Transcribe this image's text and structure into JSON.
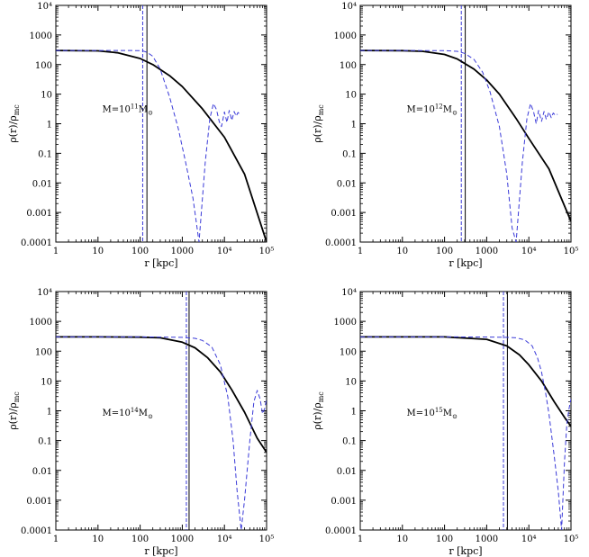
{
  "chart_data": [
    {
      "type": "line",
      "panel": "top-left",
      "xscale": "log",
      "yscale": "log",
      "xlim": [
        1,
        100000
      ],
      "ylim": [
        0.0001,
        10000
      ],
      "xlabel": "r [kpc]",
      "ylabel": "ρ(r)/ρ_mc",
      "annotation": "M=10^11 M⊙",
      "vlines": [
        {
          "x": 115,
          "style": "dashed"
        },
        {
          "x": 145,
          "style": "solid"
        }
      ],
      "series": [
        {
          "name": "solid",
          "color": "#000000",
          "style": "solid",
          "x": [
            1,
            10,
            30,
            100,
            200,
            500,
            1000,
            3000,
            10000,
            30000,
            100000
          ],
          "y": [
            300,
            290,
            250,
            160,
            100,
            42,
            18,
            3.2,
            0.35,
            0.02,
            0.0001
          ]
        },
        {
          "name": "dashed",
          "color": "#3a3ad8",
          "style": "dashed",
          "x": [
            1,
            10,
            50,
            100,
            120,
            150,
            200,
            300,
            500,
            800,
            1200,
            1800,
            2500,
            3500,
            4500,
            5500,
            6500,
            7500,
            8500,
            10000,
            11500,
            13000,
            15000,
            17000,
            19000,
            21000,
            23000
          ],
          "y": [
            300,
            300,
            300,
            295,
            285,
            255,
            190,
            70,
            8,
            0.7,
            0.05,
            0.003,
            0.0001,
            0.05,
            1.5,
            4.8,
            3,
            1.2,
            0.8,
            2.5,
            1.1,
            2.8,
            1.3,
            2.6,
            1.8,
            2.4,
            2.1
          ]
        }
      ]
    },
    {
      "type": "line",
      "panel": "top-right",
      "xscale": "log",
      "yscale": "log",
      "xlim": [
        1,
        100000
      ],
      "ylim": [
        0.0001,
        10000
      ],
      "xlabel": "r [kpc]",
      "ylabel": "ρ(r)/ρ_mc",
      "annotation": "M=10^12 M⊙",
      "vlines": [
        {
          "x": 250,
          "style": "dashed"
        },
        {
          "x": 310,
          "style": "solid"
        }
      ],
      "series": [
        {
          "name": "solid",
          "color": "#000000",
          "style": "solid",
          "x": [
            1,
            10,
            30,
            100,
            200,
            500,
            1000,
            2000,
            5000,
            10000,
            30000,
            100000
          ],
          "y": [
            300,
            295,
            280,
            220,
            155,
            70,
            30,
            10,
            1.5,
            0.32,
            0.03,
            0.0005
          ]
        },
        {
          "name": "dashed",
          "color": "#3a3ad8",
          "style": "dashed",
          "x": [
            1,
            10,
            100,
            200,
            300,
            500,
            800,
            1200,
            2000,
            3000,
            4000,
            5000,
            7000,
            9000,
            11000,
            13000,
            15000,
            17000,
            20000,
            23000,
            26000,
            30000,
            34000,
            38000,
            43000,
            48000
          ],
          "y": [
            300,
            300,
            295,
            280,
            240,
            150,
            55,
            12,
            0.8,
            0.02,
            0.0003,
            0.0001,
            0.05,
            1.5,
            4.8,
            2.5,
            1,
            2.8,
            1.2,
            2.6,
            1.4,
            2.5,
            1.6,
            2.3,
            1.9,
            2.1
          ]
        }
      ]
    },
    {
      "type": "line",
      "panel": "bottom-left",
      "xscale": "log",
      "yscale": "log",
      "xlim": [
        1,
        100000
      ],
      "ylim": [
        0.0001,
        10000
      ],
      "xlabel": "r [kpc]",
      "ylabel": "ρ(r)/ρ_mc",
      "annotation": "M=10^14 M⊙",
      "vlines": [
        {
          "x": 1250,
          "style": "dashed"
        },
        {
          "x": 1450,
          "style": "solid"
        }
      ],
      "series": [
        {
          "name": "solid",
          "color": "#000000",
          "style": "solid",
          "x": [
            1,
            10,
            100,
            300,
            1000,
            2000,
            4000,
            8000,
            15000,
            30000,
            60000,
            100000
          ],
          "y": [
            300,
            300,
            295,
            280,
            200,
            130,
            60,
            20,
            5,
            0.9,
            0.12,
            0.04
          ]
        },
        {
          "name": "dashed",
          "color": "#3a3ad8",
          "style": "dashed",
          "x": [
            1,
            10,
            100,
            500,
            1000,
            2000,
            3000,
            5000,
            8000,
            12000,
            16000,
            20000,
            25000,
            30000,
            40000,
            50000,
            60000,
            70000,
            80000,
            90000,
            100000
          ],
          "y": [
            300,
            300,
            300,
            295,
            290,
            270,
            230,
            140,
            35,
            3,
            0.1,
            0.002,
            0.0001,
            0.001,
            0.1,
            2,
            4.8,
            2.5,
            0.8,
            1.2,
            2.5
          ]
        }
      ]
    },
    {
      "type": "line",
      "panel": "bottom-right",
      "xscale": "log",
      "yscale": "log",
      "xlim": [
        1,
        100000
      ],
      "ylim": [
        0.0001,
        10000
      ],
      "xlabel": "r [kpc]",
      "ylabel": "ρ(r)/ρ_mc",
      "annotation": "M=10^15 M⊙",
      "vlines": [
        {
          "x": 2500,
          "style": "dashed"
        },
        {
          "x": 3100,
          "style": "solid"
        }
      ],
      "series": [
        {
          "name": "solid",
          "color": "#000000",
          "style": "solid",
          "x": [
            1,
            10,
            100,
            1000,
            3000,
            6000,
            10000,
            20000,
            40000,
            70000,
            100000
          ],
          "y": [
            300,
            300,
            300,
            250,
            150,
            75,
            35,
            10,
            2,
            0.6,
            0.3
          ]
        },
        {
          "name": "dashed",
          "color": "#3a3ad8",
          "style": "dashed",
          "x": [
            1,
            10,
            100,
            1000,
            3000,
            5000,
            8000,
            12000,
            16000,
            20000,
            25000,
            30000,
            40000,
            50000,
            60000,
            70000,
            80000,
            90000,
            100000
          ],
          "y": [
            300,
            300,
            300,
            298,
            290,
            280,
            240,
            150,
            60,
            20,
            4,
            0.8,
            0.03,
            0.002,
            0.0001,
            0.02,
            0.4,
            1.2,
            2.5
          ]
        }
      ]
    }
  ],
  "tick_labels": {
    "x": [
      "1",
      "10",
      "100",
      "1000",
      "10⁴",
      "10⁵"
    ],
    "y": [
      "0.0001",
      "0.001",
      "0.01",
      "0.1",
      "1",
      "10",
      "100",
      "1000",
      "10⁴"
    ]
  },
  "panel_text": [
    {
      "xlabel": "r [kpc]",
      "ylabel_main": "ρ(r)/ρ",
      "ylabel_sub": "mc",
      "annot_prefix": "M=10",
      "annot_exp": "11",
      "annot_unit": "M",
      "annot_sub": "⊙"
    },
    {
      "xlabel": "r [kpc]",
      "ylabel_main": "ρ(r)/ρ",
      "ylabel_sub": "mc",
      "annot_prefix": "M=10",
      "annot_exp": "12",
      "annot_unit": "M",
      "annot_sub": "⊙"
    },
    {
      "xlabel": "r [kpc]",
      "ylabel_main": "ρ(r)/ρ",
      "ylabel_sub": "mc",
      "annot_prefix": "M=10",
      "annot_exp": "14",
      "annot_unit": "M",
      "annot_sub": "⊙"
    },
    {
      "xlabel": "r [kpc]",
      "ylabel_main": "ρ(r)/ρ",
      "ylabel_sub": "mc",
      "annot_prefix": "M=10",
      "annot_exp": "15",
      "annot_unit": "M",
      "annot_sub": "⊙"
    }
  ]
}
